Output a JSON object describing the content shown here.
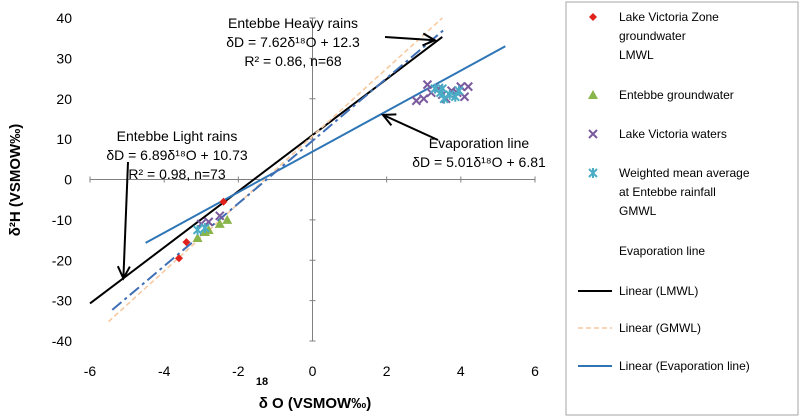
{
  "chart_data": {
    "type": "scatter",
    "xlabel": "δ   O (VSMOW‰)",
    "xlabel_superscript": "18",
    "ylabel": "δ²H (VSMOW‰)",
    "xlim": [
      -6,
      6
    ],
    "ylim": [
      -40,
      40
    ],
    "x_ticks": [
      -6,
      -4,
      -2,
      0,
      2,
      4,
      6
    ],
    "y_ticks": [
      -40,
      -30,
      -20,
      -10,
      0,
      10,
      20,
      30,
      40
    ],
    "x_tick_labels": [
      "-6",
      "-4",
      "-2",
      "0",
      "2",
      "4",
      "6"
    ],
    "y_tick_labels": [
      "-40",
      "-30",
      "-20",
      "-10",
      "0",
      "10",
      "20",
      "30",
      "40"
    ],
    "grid": false,
    "legend_position": "right",
    "series": [
      {
        "name": "Lake Victoria Zone groundwater",
        "kind": "points",
        "marker": "diamond",
        "color": "#e0201b",
        "points": [
          [
            -3.6,
            -19.5
          ],
          [
            -3.4,
            -15.5
          ],
          [
            -2.4,
            -5.5
          ]
        ]
      },
      {
        "name": "LMWL",
        "kind": "none"
      },
      {
        "name": "Entebbe groundwater",
        "kind": "points",
        "marker": "triangle",
        "color": "#8ab54a",
        "points": [
          [
            -3.1,
            -14.5
          ],
          [
            -2.8,
            -12.5
          ],
          [
            -2.5,
            -11
          ],
          [
            -2.3,
            -10
          ],
          [
            -2.9,
            -13
          ]
        ]
      },
      {
        "name": "Lake Victoria waters",
        "kind": "points",
        "marker": "x",
        "color": "#7a5a9e",
        "points": [
          [
            2.8,
            19.5
          ],
          [
            3.0,
            20
          ],
          [
            3.2,
            21.5
          ],
          [
            3.1,
            23.5
          ],
          [
            3.4,
            22.5
          ],
          [
            3.5,
            21
          ],
          [
            3.6,
            20
          ],
          [
            3.75,
            22
          ],
          [
            3.9,
            21.5
          ],
          [
            4.0,
            23
          ],
          [
            4.1,
            20.5
          ],
          [
            4.2,
            23
          ],
          [
            -3.0,
            -11
          ],
          [
            -2.8,
            -10.5
          ],
          [
            -2.5,
            -9
          ]
        ]
      },
      {
        "name": "Weighted mean average at Entebbe rainfall",
        "kind": "points",
        "marker": "star",
        "color": "#4aacc5",
        "points": [
          [
            3.3,
            22.5
          ],
          [
            3.45,
            21.5
          ],
          [
            3.55,
            20
          ],
          [
            3.7,
            21
          ],
          [
            3.85,
            20.5
          ],
          [
            3.95,
            22
          ],
          [
            3.5,
            22.5
          ],
          [
            -3.1,
            -12.5
          ],
          [
            -2.9,
            -12
          ]
        ]
      },
      {
        "name": "GMWL",
        "kind": "none"
      },
      {
        "name": "Evaporation line",
        "kind": "none"
      },
      {
        "name": "Linear (LMWL)",
        "kind": "line",
        "style": "solid",
        "color": "#000000",
        "points": [
          [
            -6,
            -30.7
          ],
          [
            3.5,
            35.3
          ]
        ]
      },
      {
        "name": "Linear (GMWL)",
        "kind": "line",
        "style": "dashed",
        "color": "#f7c9a0",
        "points": [
          [
            -5.5,
            -35.2
          ],
          [
            3.5,
            40
          ]
        ]
      },
      {
        "name": "Linear (Evaporation line)",
        "kind": "line",
        "style": "solid",
        "color": "#2e75b6",
        "points": [
          [
            -4.5,
            -15.7
          ],
          [
            5.2,
            33
          ]
        ]
      },
      {
        "name": "",
        "kind": "line",
        "style": "dashdot",
        "color": "#3f6fb5",
        "points": [
          [
            -5.4,
            -32.3
          ],
          [
            3.6,
            37.5
          ]
        ]
      }
    ],
    "annotations": [
      {
        "id": "heavy",
        "lines": [
          "Entebbe Heavy rains",
          "δD = 7.62δ¹⁸O + 12.3",
          "R² = 0.86, n=68"
        ],
        "arrow_to": [
          3.3,
          34.5
        ]
      },
      {
        "id": "light",
        "lines": [
          "Entebbe Light rains",
          "δD = 6.89δ¹⁸O + 10.73",
          "R² = 0.98, n=73"
        ],
        "arrow_to": [
          -5.1,
          -24.5
        ]
      },
      {
        "id": "evap",
        "lines": [
          "Evaporation line",
          "δD = 5.01δ¹⁸O + 6.81"
        ],
        "arrow_to": [
          1.9,
          16
        ]
      }
    ]
  }
}
